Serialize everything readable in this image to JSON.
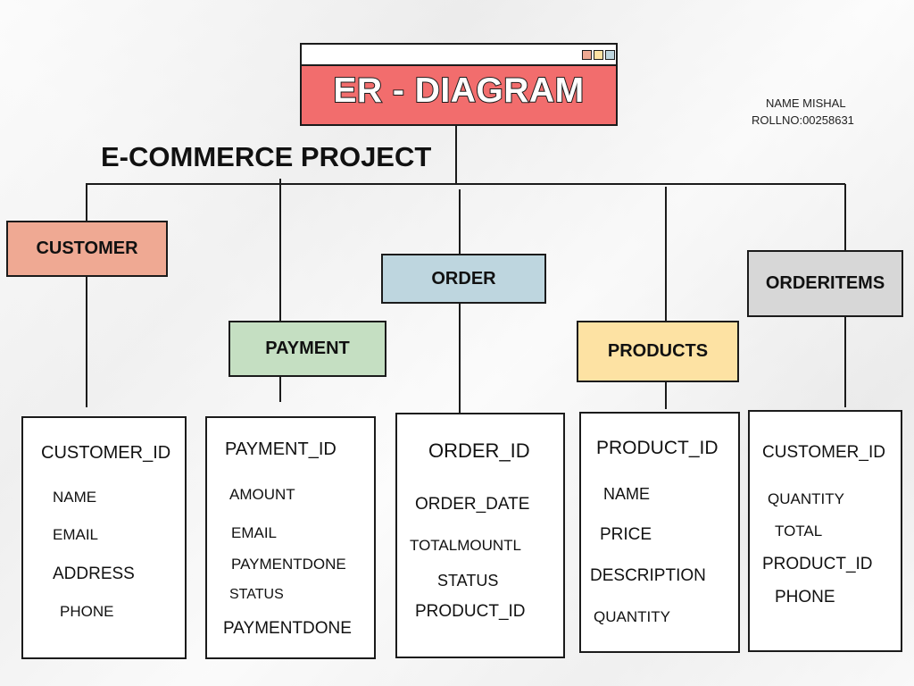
{
  "title": "ER - DIAGRAM",
  "subtitle": "E-COMMERCE PROJECT",
  "author": {
    "name": "NAME MISHAL",
    "roll": "ROLLNO:00258631"
  },
  "colors": {
    "title": "#f26d6d",
    "customer": "#efa993",
    "payment": "#c5dfc2",
    "order": "#bed6df",
    "products": "#fde2a3",
    "orderitems": "#d7d7d7",
    "window_dots": [
      "#efa993",
      "#fde2a3",
      "#bed6df"
    ]
  },
  "entities": {
    "customer": {
      "label": "CUSTOMER",
      "attributes": [
        "CUSTOMER_ID",
        "NAME",
        "EMAIL",
        "ADDRESS",
        "PHONE"
      ]
    },
    "payment": {
      "label": "PAYMENT",
      "attributes": [
        "PAYMENT_ID",
        "AMOUNT",
        "EMAIL",
        "PAYMENTDONE",
        "STATUS",
        "PAYMENTDONE"
      ]
    },
    "order": {
      "label": "ORDER",
      "attributes": [
        "ORDER_ID",
        "ORDER_DATE",
        "TOTALMOUNTL",
        "STATUS",
        "PRODUCT_ID"
      ]
    },
    "products": {
      "label": "PRODUCTS",
      "attributes": [
        "PRODUCT_ID",
        "NAME",
        "PRICE",
        "DESCRIPTION",
        "QUANTITY"
      ]
    },
    "orderitems": {
      "label": "ORDERITEMS",
      "attributes": [
        "CUSTOMER_ID",
        "QUANTITY",
        "TOTAL",
        "PRODUCT_ID",
        "PHONE"
      ]
    }
  }
}
